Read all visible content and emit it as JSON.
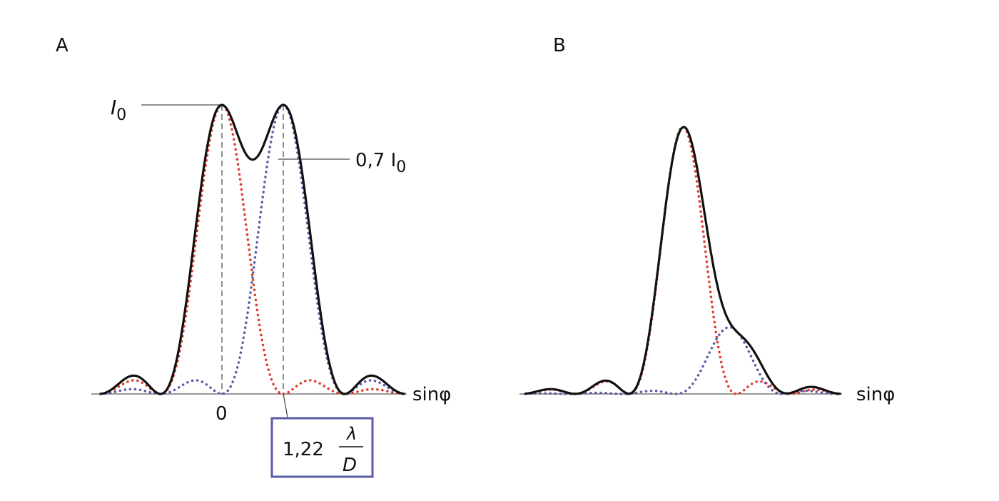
{
  "panel_a": {
    "label": "A",
    "peak_label": "I",
    "peak_label_sub": "0",
    "dip_label": "0,7 I",
    "dip_label_sub": "0",
    "origin_label": "0",
    "axis_label": "sinφ",
    "separation_box": {
      "coef": "1,22",
      "numerator": "λ",
      "denominator": "D"
    },
    "sources": [
      {
        "name": "source-1",
        "center": 0,
        "amplitude": 1,
        "color": "#e0392b"
      },
      {
        "name": "source-2",
        "center": 1.22,
        "amplitude": 1,
        "color": "#5a5aa8"
      }
    ]
  },
  "panel_b": {
    "label": "B",
    "axis_label": "sinφ",
    "sources": [
      {
        "name": "source-1",
        "center": 0,
        "amplitude": 1,
        "color": "#e0392b"
      },
      {
        "name": "source-2",
        "center": 1.06,
        "amplitude": 0.25,
        "color": "#5a5aa8"
      }
    ]
  },
  "colors": {
    "sum": "#111111",
    "box": "#5a5aa8"
  }
}
